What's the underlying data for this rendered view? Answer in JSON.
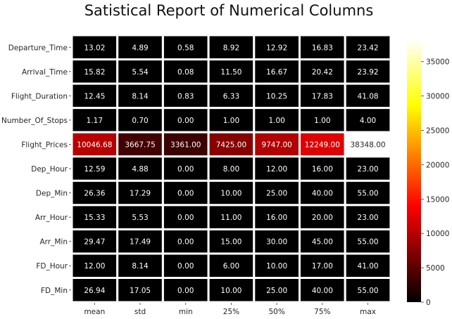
{
  "chart_data": {
    "type": "heatmap",
    "title": "Satistical Report of Numerical Columns",
    "xlabel": "",
    "ylabel": "",
    "colormap": "hot",
    "colorbar": {
      "range": [
        0,
        38348
      ],
      "ticks": [
        "0",
        "5000",
        "10000",
        "15000",
        "20000",
        "25000",
        "30000",
        "35000"
      ]
    },
    "columns": [
      "mean",
      "std",
      "min",
      "25%",
      "50%",
      "75%",
      "max"
    ],
    "rows": [
      "Departure_Time",
      "Arrival_Time",
      "Flight_Duration",
      "Number_Of_Stops",
      "Flight_Prices",
      "Dep_Hour",
      "Dep_Min",
      "Arr_Hour",
      "Arr_Min",
      "FD_Hour",
      "FD_Min"
    ],
    "values": [
      [
        13.02,
        4.89,
        0.58,
        8.92,
        12.92,
        16.83,
        23.42
      ],
      [
        15.82,
        5.54,
        0.08,
        11.5,
        16.67,
        20.42,
        23.92
      ],
      [
        12.45,
        8.14,
        0.83,
        6.33,
        10.25,
        17.83,
        41.08
      ],
      [
        1.17,
        0.7,
        0.0,
        1.0,
        1.0,
        1.0,
        4.0
      ],
      [
        10046.68,
        3667.75,
        3361.0,
        7425.0,
        9747.0,
        12249.0,
        38348.0
      ],
      [
        12.59,
        4.88,
        0.0,
        8.0,
        12.0,
        16.0,
        23.0
      ],
      [
        26.36,
        17.29,
        0.0,
        10.0,
        25.0,
        40.0,
        55.0
      ],
      [
        15.33,
        5.53,
        0.0,
        11.0,
        16.0,
        20.0,
        23.0
      ],
      [
        29.47,
        17.49,
        0.0,
        15.0,
        30.0,
        45.0,
        55.0
      ],
      [
        12.0,
        8.14,
        0.0,
        6.0,
        10.0,
        17.0,
        41.0
      ],
      [
        26.94,
        17.05,
        0.0,
        10.0,
        25.0,
        40.0,
        55.0
      ]
    ],
    "grid": false
  }
}
